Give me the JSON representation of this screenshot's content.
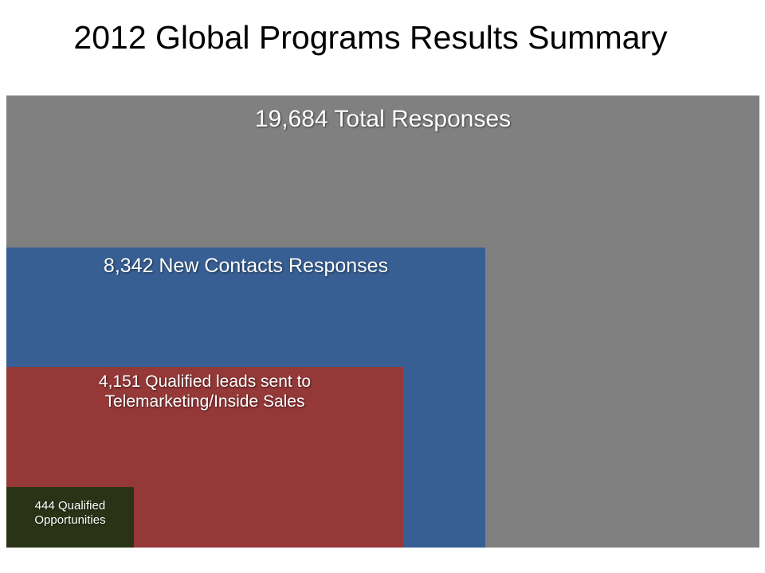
{
  "title": "2012 Global Programs Results Summary",
  "boxes": {
    "total": {
      "label": "19,684 Total Responses",
      "value": 19684,
      "color": "#808080"
    },
    "new_contacts": {
      "label": "8,342 New Contacts Responses",
      "value": 8342,
      "color": "#375f94"
    },
    "qualified_leads": {
      "label_line1": "4,151 Qualified leads sent to",
      "label_line2": "Telemarketing/Inside Sales",
      "value": 4151,
      "color": "#943838"
    },
    "opportunities": {
      "label_line1": "444 Qualified",
      "label_line2": "Opportunities",
      "value": 444,
      "color": "#2b3316"
    }
  }
}
